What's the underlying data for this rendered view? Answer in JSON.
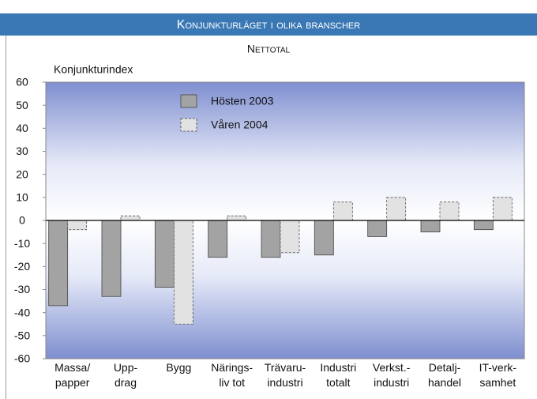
{
  "chart_data": {
    "type": "bar",
    "title": "Konjunkturläget i olika branscher",
    "subtitle": "Nettotal",
    "y_label": "Konjunkturindex",
    "categories": [
      "Massa/\npapper",
      "Upp-\ndrag",
      "Bygg",
      "Närings-\nliv tot",
      "Trävaru-\nindustri",
      "Industri\ntotalt",
      "Verkst.-\nindustri",
      "Detalj-\nhandel",
      "IT-verk-\nsamhet"
    ],
    "series": [
      {
        "name": "Hösten 2003",
        "color": "#a3a3a3",
        "border": "solid",
        "values": [
          -37,
          -33,
          -29,
          -16,
          -16,
          -15,
          -7,
          -5,
          -4
        ]
      },
      {
        "name": "Våren 2004",
        "color": "#e2e2e2",
        "border": "dashed",
        "values": [
          -4,
          2,
          -45,
          2,
          -14,
          8,
          10,
          8,
          10
        ]
      }
    ],
    "ylim": [
      -60,
      60
    ],
    "yticks": [
      -60,
      -50,
      -40,
      -30,
      -20,
      -10,
      0,
      10,
      20,
      30,
      40,
      50,
      60
    ],
    "grid": false
  }
}
